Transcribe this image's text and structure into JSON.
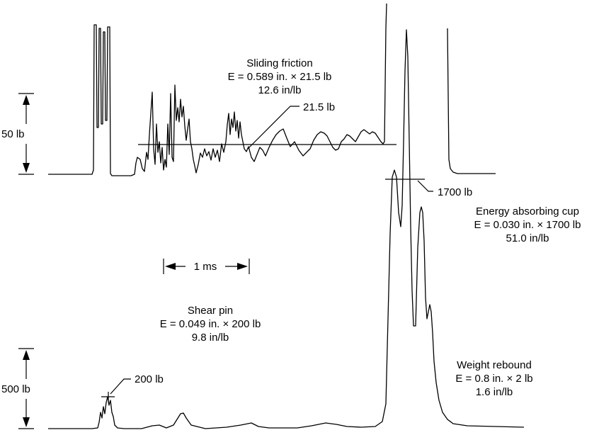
{
  "sliding_friction": {
    "title": "Sliding friction",
    "equation": "E = 0.589 in. × 21.5 lb",
    "result": "12.6 in/lb",
    "level_label": "21.5 lb"
  },
  "energy_absorbing_cup": {
    "title": "Energy absorbing cup",
    "equation": "E = 0.030 in. × 1700 lb",
    "result": "51.0 in/lb",
    "level_label": "1700 lb"
  },
  "shear_pin": {
    "title": "Shear pin",
    "equation": "E = 0.049 in. × 200 lb",
    "result": "9.8 in/lb",
    "level_label": "200 lb"
  },
  "weight_rebound": {
    "title": "Weight rebound",
    "equation": "E = 0.8 in. × 2 lb",
    "result": "1.6 in/lb"
  },
  "scales": {
    "upper_force": "50 lb",
    "lower_force": "500 lb",
    "time": "1 ms"
  }
}
